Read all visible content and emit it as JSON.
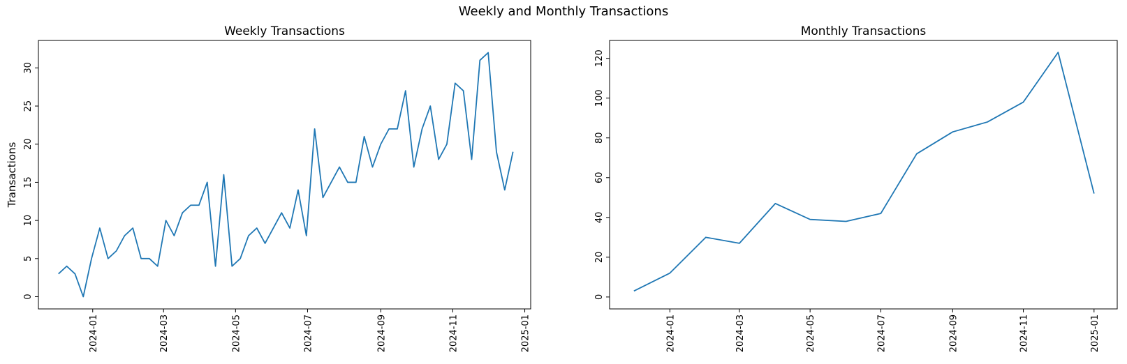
{
  "figure": {
    "title": "Weekly and Monthly Transactions"
  },
  "chart_data": [
    {
      "type": "line",
      "title": "Weekly Transactions",
      "xlabel": "",
      "ylabel": "Transactions",
      "line_color": "#1f77b4",
      "grid": false,
      "xlim": [
        "2023-11-16",
        "2025-01-06"
      ],
      "ylim": [
        -1.6,
        33.6
      ],
      "x_ticks": [
        "2024-01",
        "2024-03",
        "2024-05",
        "2024-07",
        "2024-09",
        "2024-11",
        "2025-01"
      ],
      "y_ticks": [
        0,
        5,
        10,
        15,
        20,
        25,
        30
      ],
      "series": [
        {
          "x": [
            "2023-12-03",
            "2023-12-10",
            "2023-12-17",
            "2023-12-24",
            "2023-12-31",
            "2024-01-07",
            "2024-01-14",
            "2024-01-21",
            "2024-01-28",
            "2024-02-04",
            "2024-02-11",
            "2024-02-18",
            "2024-02-25",
            "2024-03-03",
            "2024-03-10",
            "2024-03-17",
            "2024-03-24",
            "2024-03-31",
            "2024-04-07",
            "2024-04-14",
            "2024-04-21",
            "2024-04-28",
            "2024-05-05",
            "2024-05-12",
            "2024-05-19",
            "2024-05-26",
            "2024-06-02",
            "2024-06-09",
            "2024-06-16",
            "2024-06-23",
            "2024-06-30",
            "2024-07-07",
            "2024-07-14",
            "2024-07-21",
            "2024-07-28",
            "2024-08-04",
            "2024-08-11",
            "2024-08-18",
            "2024-08-25",
            "2024-09-01",
            "2024-09-08",
            "2024-09-15",
            "2024-09-22",
            "2024-09-29",
            "2024-10-06",
            "2024-10-13",
            "2024-10-20",
            "2024-10-27",
            "2024-11-03",
            "2024-11-10",
            "2024-11-17",
            "2024-11-24",
            "2024-12-01",
            "2024-12-08",
            "2024-12-15",
            "2024-12-22"
          ],
          "values": [
            3,
            4,
            3,
            0,
            5,
            9,
            5,
            6,
            8,
            9,
            5,
            5,
            4,
            10,
            8,
            11,
            12,
            12,
            15,
            4,
            16,
            4,
            5,
            8,
            9,
            7,
            9,
            11,
            9,
            14,
            8,
            22,
            13,
            15,
            17,
            15,
            15,
            21,
            17,
            20,
            22,
            22,
            27,
            17,
            22,
            25,
            18,
            20,
            28,
            27,
            18,
            31,
            32,
            19,
            14,
            19
          ]
        }
      ]
    },
    {
      "type": "line",
      "title": "Monthly Transactions",
      "xlabel": "",
      "ylabel": "",
      "line_color": "#1f77b4",
      "grid": false,
      "xlim": [
        "2023-11-10",
        "2025-01-21"
      ],
      "ylim": [
        -6,
        129
      ],
      "x_ticks": [
        "2024-01",
        "2024-03",
        "2024-05",
        "2024-07",
        "2024-09",
        "2024-11",
        "2025-01"
      ],
      "y_ticks": [
        0,
        20,
        40,
        60,
        80,
        100,
        120
      ],
      "series": [
        {
          "x": [
            "2023-12-01",
            "2024-01-01",
            "2024-02-01",
            "2024-03-01",
            "2024-04-01",
            "2024-05-01",
            "2024-06-01",
            "2024-07-01",
            "2024-08-01",
            "2024-09-01",
            "2024-10-01",
            "2024-11-01",
            "2024-12-01",
            "2025-01-01"
          ],
          "values": [
            3,
            12,
            30,
            27,
            47,
            39,
            38,
            42,
            72,
            83,
            88,
            98,
            123,
            52
          ]
        }
      ]
    }
  ]
}
